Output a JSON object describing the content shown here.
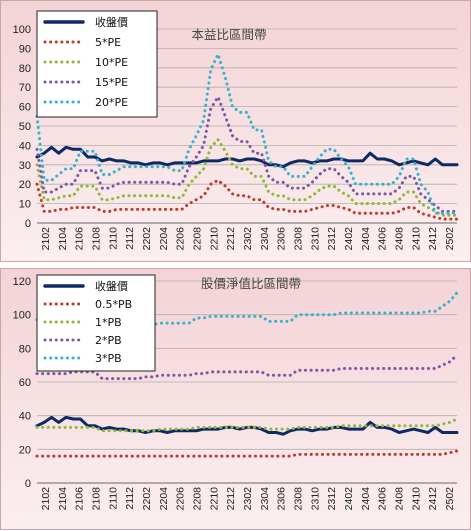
{
  "x_labels": [
    "2102",
    "2104",
    "2106",
    "2108",
    "2110",
    "2112",
    "2202",
    "2204",
    "2206",
    "2208",
    "2210",
    "2212",
    "2302",
    "2304",
    "2306",
    "2308",
    "2310",
    "2312",
    "2402",
    "2404",
    "2406",
    "2408",
    "2410",
    "2412",
    "2502"
  ],
  "chart_data": [
    {
      "type": "line",
      "title": "本益比區間帶",
      "ylim": [
        0,
        100
      ],
      "yticks": [
        0,
        10,
        20,
        30,
        40,
        50,
        60,
        70,
        80,
        90,
        100
      ],
      "grid": true,
      "legend_position": "top-left",
      "series": [
        {
          "name": "收盤價",
          "color": "#0d2a66",
          "dash": "solid",
          "values": [
            34,
            36,
            39,
            36,
            39,
            38,
            38,
            34,
            34,
            32,
            33,
            32,
            32,
            31,
            31,
            30,
            31,
            31,
            30,
            31,
            31,
            31,
            31,
            32,
            32,
            32,
            33,
            33,
            32,
            33,
            33,
            32,
            30,
            30,
            29,
            31,
            32,
            32,
            31,
            32,
            32,
            33,
            33,
            32,
            32,
            32,
            36,
            33,
            33,
            32,
            30,
            31,
            32,
            31,
            30,
            33,
            30,
            30,
            30
          ]
        },
        {
          "name": "5*PE",
          "color": "#c0392b",
          "dash": "dot",
          "values": [
            20,
            6,
            6,
            7,
            7,
            8,
            8,
            8,
            8,
            6,
            6,
            7,
            7,
            7,
            7,
            7,
            7,
            7,
            7,
            7,
            7,
            10,
            12,
            14,
            20,
            22,
            19,
            15,
            14,
            14,
            12,
            12,
            8,
            7,
            7,
            6,
            6,
            6,
            7,
            8,
            9,
            9,
            8,
            7,
            5,
            5,
            5,
            5,
            5,
            5,
            6,
            8,
            8,
            5,
            4,
            3,
            2,
            2,
            2
          ]
        },
        {
          "name": "10*PE",
          "color": "#8fb83a",
          "dash": "dot",
          "values": [
            30,
            12,
            12,
            13,
            14,
            14,
            19,
            19,
            19,
            12,
            12,
            13,
            14,
            14,
            14,
            14,
            14,
            14,
            14,
            13,
            13,
            20,
            24,
            28,
            39,
            43,
            37,
            30,
            28,
            28,
            24,
            24,
            16,
            14,
            14,
            12,
            12,
            12,
            14,
            17,
            19,
            19,
            16,
            14,
            10,
            10,
            10,
            10,
            10,
            10,
            12,
            16,
            16,
            10,
            8,
            6,
            4,
            4,
            4
          ]
        },
        {
          "name": "15*PE",
          "color": "#7d56a6",
          "dash": "dot",
          "values": [
            38,
            16,
            16,
            18,
            20,
            20,
            27,
            27,
            27,
            18,
            18,
            20,
            21,
            21,
            21,
            21,
            21,
            21,
            21,
            20,
            20,
            29,
            34,
            40,
            59,
            65,
            55,
            45,
            42,
            42,
            36,
            36,
            24,
            21,
            21,
            18,
            18,
            18,
            21,
            25,
            28,
            28,
            24,
            21,
            15,
            15,
            15,
            15,
            15,
            15,
            18,
            24,
            24,
            15,
            12,
            9,
            6,
            6,
            6
          ]
        },
        {
          "name": "20*PE",
          "color": "#3ab0c9",
          "dash": "dot",
          "values": [
            55,
            22,
            22,
            25,
            28,
            28,
            37,
            37,
            37,
            25,
            25,
            27,
            29,
            29,
            29,
            29,
            29,
            29,
            29,
            27,
            27,
            38,
            45,
            53,
            79,
            87,
            75,
            60,
            57,
            57,
            48,
            48,
            32,
            29,
            29,
            24,
            24,
            24,
            29,
            34,
            38,
            38,
            33,
            29,
            20,
            20,
            20,
            20,
            20,
            20,
            24,
            33,
            33,
            20,
            16,
            5,
            5,
            5,
            5
          ]
        }
      ]
    },
    {
      "type": "line",
      "title": "股價淨值比區間帶",
      "ylim": [
        0,
        120
      ],
      "yticks": [
        0,
        20,
        40,
        60,
        80,
        100,
        120
      ],
      "grid": true,
      "legend_position": "top-left",
      "series": [
        {
          "name": "收盤價",
          "color": "#0d2a66",
          "dash": "solid",
          "values": [
            34,
            36,
            39,
            36,
            39,
            38,
            38,
            34,
            34,
            32,
            33,
            32,
            32,
            31,
            31,
            30,
            31,
            31,
            30,
            31,
            31,
            31,
            31,
            32,
            32,
            32,
            33,
            33,
            32,
            33,
            33,
            32,
            30,
            30,
            29,
            31,
            32,
            32,
            31,
            32,
            32,
            33,
            33,
            32,
            32,
            32,
            36,
            33,
            33,
            32,
            30,
            31,
            32,
            31,
            30,
            33,
            30,
            30,
            30
          ]
        },
        {
          "name": "0.5*PB",
          "color": "#c0392b",
          "dash": "dot",
          "values": [
            16,
            16,
            16,
            16,
            16,
            16,
            16,
            16,
            16,
            16,
            16,
            16,
            16,
            16,
            16,
            16,
            16,
            16,
            16,
            16,
            16,
            16,
            16,
            16,
            16,
            16,
            16,
            16,
            16,
            16,
            16,
            16,
            16,
            16,
            16,
            16,
            17,
            17,
            17,
            17,
            17,
            17,
            17,
            17,
            17,
            17,
            17,
            17,
            17,
            17,
            17,
            17,
            17,
            17,
            17,
            17,
            17,
            18,
            19
          ]
        },
        {
          "name": "1*PB",
          "color": "#8fb83a",
          "dash": "dot",
          "values": [
            33,
            33,
            33,
            33,
            33,
            33,
            33,
            33,
            33,
            31,
            31,
            31,
            31,
            31,
            31,
            31,
            31,
            32,
            32,
            32,
            32,
            32,
            33,
            33,
            33,
            33,
            33,
            33,
            33,
            33,
            33,
            33,
            32,
            32,
            32,
            32,
            33,
            33,
            33,
            33,
            33,
            33,
            34,
            34,
            34,
            34,
            34,
            34,
            34,
            34,
            34,
            34,
            34,
            34,
            34,
            34,
            35,
            36,
            38
          ]
        },
        {
          "name": "2*PB",
          "color": "#7d56a6",
          "dash": "dot",
          "values": [
            65,
            65,
            65,
            65,
            65,
            66,
            66,
            66,
            66,
            62,
            62,
            62,
            62,
            62,
            62,
            63,
            63,
            64,
            64,
            64,
            64,
            64,
            65,
            65,
            66,
            66,
            66,
            66,
            66,
            66,
            66,
            66,
            64,
            64,
            64,
            64,
            67,
            67,
            67,
            67,
            67,
            67,
            68,
            68,
            68,
            68,
            68,
            68,
            68,
            68,
            68,
            68,
            68,
            68,
            68,
            68,
            70,
            72,
            76
          ]
        },
        {
          "name": "3*PB",
          "color": "#3ab0c9",
          "dash": "dot",
          "values": [
            97,
            97,
            97,
            97,
            97,
            98,
            98,
            98,
            98,
            93,
            93,
            93,
            93,
            93,
            93,
            94,
            94,
            95,
            95,
            95,
            95,
            95,
            98,
            98,
            99,
            99,
            99,
            99,
            99,
            99,
            99,
            99,
            96,
            96,
            96,
            96,
            100,
            100,
            100,
            100,
            100,
            100,
            101,
            101,
            101,
            101,
            101,
            101,
            101,
            101,
            101,
            101,
            101,
            101,
            102,
            102,
            105,
            108,
            113
          ]
        }
      ]
    }
  ]
}
